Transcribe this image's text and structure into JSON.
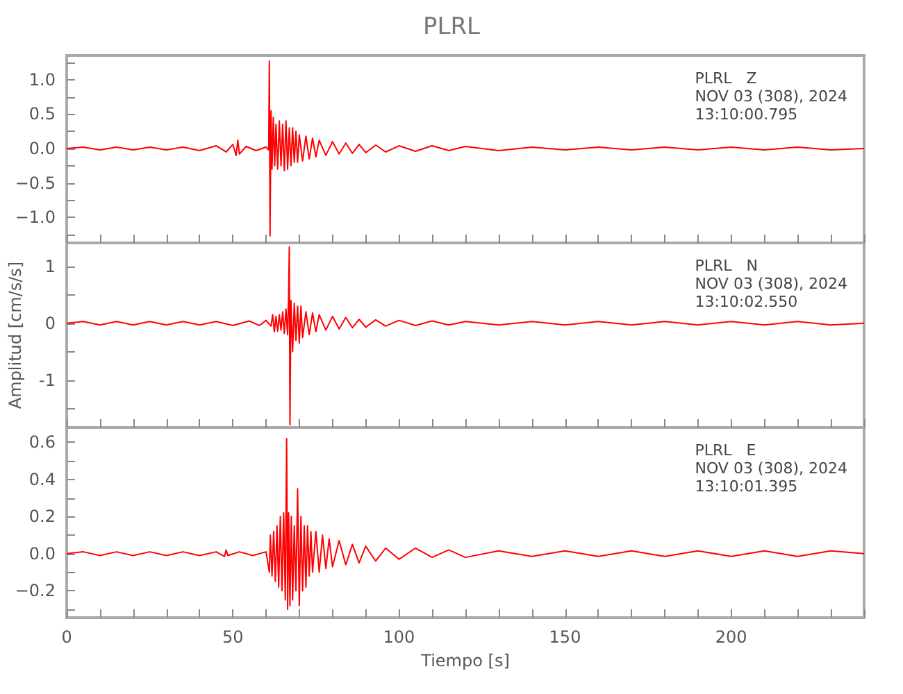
{
  "chart_data": [
    {
      "type": "line",
      "title": "PLRL",
      "annotations": [
        "PLRL   Z\nNOV 03 (308), 2024\n13:10:00.795"
      ],
      "tick_labels": "y",
      "grid": false,
      "marker": "none",
      "line_style": "solid",
      "xlim": [
        0,
        240
      ],
      "xticks": [
        0,
        {
          "value": 10,
          "label": null
        },
        {
          "value": 20,
          "label": null
        },
        {
          "value": 30,
          "label": null
        },
        {
          "value": 40,
          "label": null
        },
        50,
        {
          "value": 60,
          "label": null
        },
        {
          "value": 70,
          "label": null
        },
        {
          "value": 80,
          "label": null
        },
        {
          "value": 90,
          "label": null
        },
        100,
        {
          "value": 110,
          "label": null
        },
        {
          "value": 120,
          "label": null
        },
        {
          "value": 130,
          "label": null
        },
        {
          "value": 140,
          "label": null
        },
        150,
        {
          "value": 160,
          "label": null
        },
        {
          "value": 170,
          "label": null
        },
        {
          "value": 180,
          "label": null
        },
        {
          "value": 190,
          "label": null
        },
        200,
        {
          "value": 210,
          "label": null
        },
        {
          "value": 220,
          "label": null
        },
        {
          "value": 230,
          "label": null
        },
        {
          "value": 240,
          "label": null
        }
      ],
      "ylim": [
        -1.37,
        1.35
      ],
      "yticks": [
        {
          "value": -1.25,
          "label": null
        },
        {
          "value": -1,
          "label": "−1.0"
        },
        {
          "value": -0.75,
          "label": null
        },
        {
          "value": -0.5,
          "label": "−0.5"
        },
        {
          "value": -0.25,
          "label": null
        },
        {
          "value": 0,
          "label": "0.0"
        },
        {
          "value": 0.25,
          "label": null
        },
        {
          "value": 0.5,
          "label": "0.5"
        },
        {
          "value": 0.75,
          "label": null
        },
        {
          "value": 1,
          "label": "1.0"
        },
        {
          "value": 1.25,
          "label": null
        }
      ],
      "series": [
        {
          "color": "#ff0000",
          "x": [
            0,
            5,
            10,
            15,
            20,
            25,
            30,
            35,
            40,
            45,
            48,
            50,
            51,
            51.5,
            52,
            54,
            57,
            60,
            60.8,
            61,
            61.2,
            61.5,
            61.8,
            62.2,
            62.6,
            63,
            63.5,
            64,
            64.5,
            65,
            65.5,
            66,
            66.5,
            67,
            67.5,
            68,
            68.5,
            69,
            69.5,
            70,
            71,
            72,
            73,
            74,
            75,
            76,
            78,
            80,
            82,
            84,
            86,
            88,
            90,
            93,
            96,
            100,
            105,
            110,
            115,
            120,
            130,
            140,
            150,
            160,
            170,
            180,
            190,
            200,
            210,
            220,
            230,
            240
          ],
          "values": [
            0,
            0.02,
            -0.02,
            0.02,
            -0.02,
            0.02,
            -0.02,
            0.02,
            -0.03,
            0.04,
            -0.05,
            0.06,
            -0.1,
            0.12,
            -0.08,
            0.03,
            -0.03,
            0.02,
            -0.02,
            1.27,
            -1.27,
            0.55,
            -0.3,
            0.45,
            -0.25,
            0.35,
            -0.3,
            0.4,
            -0.25,
            0.35,
            -0.32,
            0.4,
            -0.3,
            0.3,
            -0.25,
            0.3,
            -0.2,
            0.25,
            -0.2,
            0.2,
            -0.18,
            0.18,
            -0.15,
            0.15,
            -0.12,
            0.12,
            -0.1,
            0.1,
            -0.08,
            0.08,
            -0.07,
            0.06,
            -0.06,
            0.05,
            -0.05,
            0.04,
            -0.04,
            0.04,
            -0.03,
            0.03,
            -0.03,
            0.02,
            -0.02,
            0.02,
            -0.02,
            0.02,
            -0.02,
            0.02,
            -0.02,
            0.02,
            -0.02,
            0
          ]
        }
      ]
    },
    {
      "type": "line",
      "ylabel": "Amplitud [cm/s/s]",
      "annotations": [
        "PLRL   N\nNOV 03 (308), 2024\n13:10:02.550"
      ],
      "tick_labels": "y",
      "grid": false,
      "marker": "none",
      "line_style": "solid",
      "xlim": [
        0,
        240
      ],
      "xticks": [
        0,
        {
          "value": 10,
          "label": null
        },
        {
          "value": 20,
          "label": null
        },
        {
          "value": 30,
          "label": null
        },
        {
          "value": 40,
          "label": null
        },
        50,
        {
          "value": 60,
          "label": null
        },
        {
          "value": 70,
          "label": null
        },
        {
          "value": 80,
          "label": null
        },
        {
          "value": 90,
          "label": null
        },
        100,
        {
          "value": 110,
          "label": null
        },
        {
          "value": 120,
          "label": null
        },
        {
          "value": 130,
          "label": null
        },
        {
          "value": 140,
          "label": null
        },
        150,
        {
          "value": 160,
          "label": null
        },
        {
          "value": 170,
          "label": null
        },
        {
          "value": 180,
          "label": null
        },
        {
          "value": 190,
          "label": null
        },
        200,
        {
          "value": 210,
          "label": null
        },
        {
          "value": 220,
          "label": null
        },
        {
          "value": 230,
          "label": null
        },
        {
          "value": 240,
          "label": null
        }
      ],
      "ylim": [
        -1.83,
        1.41
      ],
      "yticks": [
        {
          "value": -1.5,
          "label": null
        },
        -1,
        {
          "value": -0.5,
          "label": null
        },
        0,
        {
          "value": 0.5,
          "label": null
        },
        1
      ],
      "series": [
        {
          "color": "#ff0000",
          "x": [
            0,
            5,
            10,
            15,
            20,
            25,
            30,
            35,
            40,
            45,
            50,
            55,
            58,
            60,
            61.5,
            62,
            62.5,
            63,
            63.5,
            64,
            64.5,
            65,
            65.5,
            66,
            66.5,
            66.8,
            67,
            67.2,
            67.5,
            68,
            68.5,
            69,
            69.5,
            70,
            70.5,
            71,
            72,
            73,
            74,
            75,
            76,
            78,
            80,
            82,
            84,
            86,
            88,
            90,
            93,
            96,
            100,
            105,
            110,
            115,
            120,
            130,
            140,
            150,
            160,
            170,
            180,
            190,
            200,
            210,
            220,
            230,
            240
          ],
          "values": [
            0,
            0.03,
            -0.03,
            0.03,
            -0.03,
            0.03,
            -0.03,
            0.03,
            -0.03,
            0.03,
            -0.04,
            0.04,
            -0.04,
            0.05,
            -0.05,
            0.15,
            -0.15,
            0.12,
            -0.14,
            0.15,
            -0.12,
            0.2,
            -0.18,
            0.25,
            -0.2,
            0.5,
            1.34,
            -1.78,
            0.4,
            -0.5,
            0.35,
            -0.3,
            0.3,
            -0.35,
            0.3,
            -0.25,
            0.2,
            -0.2,
            0.18,
            -0.15,
            0.15,
            -0.12,
            0.12,
            -0.1,
            0.1,
            -0.08,
            0.07,
            -0.07,
            0.06,
            -0.05,
            0.05,
            -0.04,
            0.04,
            -0.03,
            0.03,
            -0.03,
            0.03,
            -0.03,
            0.03,
            -0.03,
            0.03,
            -0.03,
            0.03,
            -0.03,
            0.03,
            -0.03,
            0
          ]
        }
      ]
    },
    {
      "type": "line",
      "xlabel": "Tiempo [s]",
      "annotations": [
        "PLRL   E\nNOV 03 (308), 2024\n13:10:01.395"
      ],
      "grid": false,
      "marker": "none",
      "line_style": "solid",
      "xlim": [
        0,
        240
      ],
      "xticks": [
        0,
        {
          "value": 10,
          "label": null
        },
        {
          "value": 20,
          "label": null
        },
        {
          "value": 30,
          "label": null
        },
        {
          "value": 40,
          "label": null
        },
        50,
        {
          "value": 60,
          "label": null
        },
        {
          "value": 70,
          "label": null
        },
        {
          "value": 80,
          "label": null
        },
        {
          "value": 90,
          "label": null
        },
        100,
        {
          "value": 110,
          "label": null
        },
        {
          "value": 120,
          "label": null
        },
        {
          "value": 130,
          "label": null
        },
        {
          "value": 140,
          "label": null
        },
        150,
        {
          "value": 160,
          "label": null
        },
        {
          "value": 170,
          "label": null
        },
        {
          "value": 180,
          "label": null
        },
        {
          "value": 190,
          "label": null
        },
        200,
        {
          "value": 210,
          "label": null
        },
        {
          "value": 220,
          "label": null
        },
        {
          "value": 230,
          "label": null
        },
        {
          "value": 240,
          "label": null
        }
      ],
      "ylim": [
        -0.345,
        0.68
      ],
      "yticks": [
        {
          "value": -0.3,
          "label": null
        },
        {
          "value": -0.2,
          "label": "−0.2"
        },
        {
          "value": -0.1,
          "label": null
        },
        {
          "value": 0,
          "label": "0.0"
        },
        {
          "value": 0.1,
          "label": null
        },
        {
          "value": 0.2,
          "label": "0.2"
        },
        {
          "value": 0.3,
          "label": null
        },
        {
          "value": 0.4,
          "label": "0.4"
        },
        {
          "value": 0.5,
          "label": null
        },
        {
          "value": 0.6,
          "label": "0.6"
        }
      ],
      "series": [
        {
          "color": "#ff0000",
          "x": [
            0,
            5,
            10,
            15,
            20,
            25,
            30,
            35,
            40,
            45,
            47.5,
            48,
            48.5,
            52,
            56,
            60,
            61,
            61.3,
            61.8,
            62.3,
            62.8,
            63.3,
            63.8,
            64.3,
            64.8,
            65.3,
            65.8,
            66.2,
            66.5,
            66.8,
            67.2,
            67.6,
            68,
            68.5,
            69,
            69.5,
            70,
            70.5,
            71,
            71.5,
            72,
            72.5,
            73,
            73.5,
            74,
            75,
            76,
            77,
            78,
            79,
            80,
            82,
            84,
            86,
            88,
            90,
            93,
            96,
            100,
            105,
            110,
            115,
            120,
            130,
            140,
            150,
            160,
            170,
            180,
            190,
            200,
            210,
            220,
            230,
            240
          ],
          "values": [
            0,
            0.01,
            -0.01,
            0.01,
            -0.01,
            0.01,
            -0.01,
            0.01,
            -0.01,
            0.01,
            -0.015,
            0.02,
            -0.01,
            0.01,
            -0.01,
            0.01,
            -0.1,
            0.1,
            -0.12,
            0.12,
            -0.15,
            0.15,
            -0.18,
            0.2,
            -0.2,
            0.22,
            -0.25,
            0.62,
            -0.3,
            0.22,
            -0.28,
            0.2,
            -0.25,
            0.15,
            -0.2,
            0.35,
            -0.28,
            0.2,
            -0.2,
            0.15,
            -0.18,
            0.15,
            -0.12,
            0.12,
            -0.1,
            0.12,
            -0.1,
            0.1,
            -0.08,
            0.08,
            -0.07,
            0.07,
            -0.06,
            0.05,
            -0.05,
            0.04,
            -0.04,
            0.03,
            -0.03,
            0.03,
            -0.02,
            0.02,
            -0.02,
            0.015,
            -0.015,
            0.015,
            -0.015,
            0.015,
            -0.015,
            0.015,
            -0.015,
            0.015,
            -0.015,
            0.015,
            0
          ]
        }
      ]
    }
  ]
}
